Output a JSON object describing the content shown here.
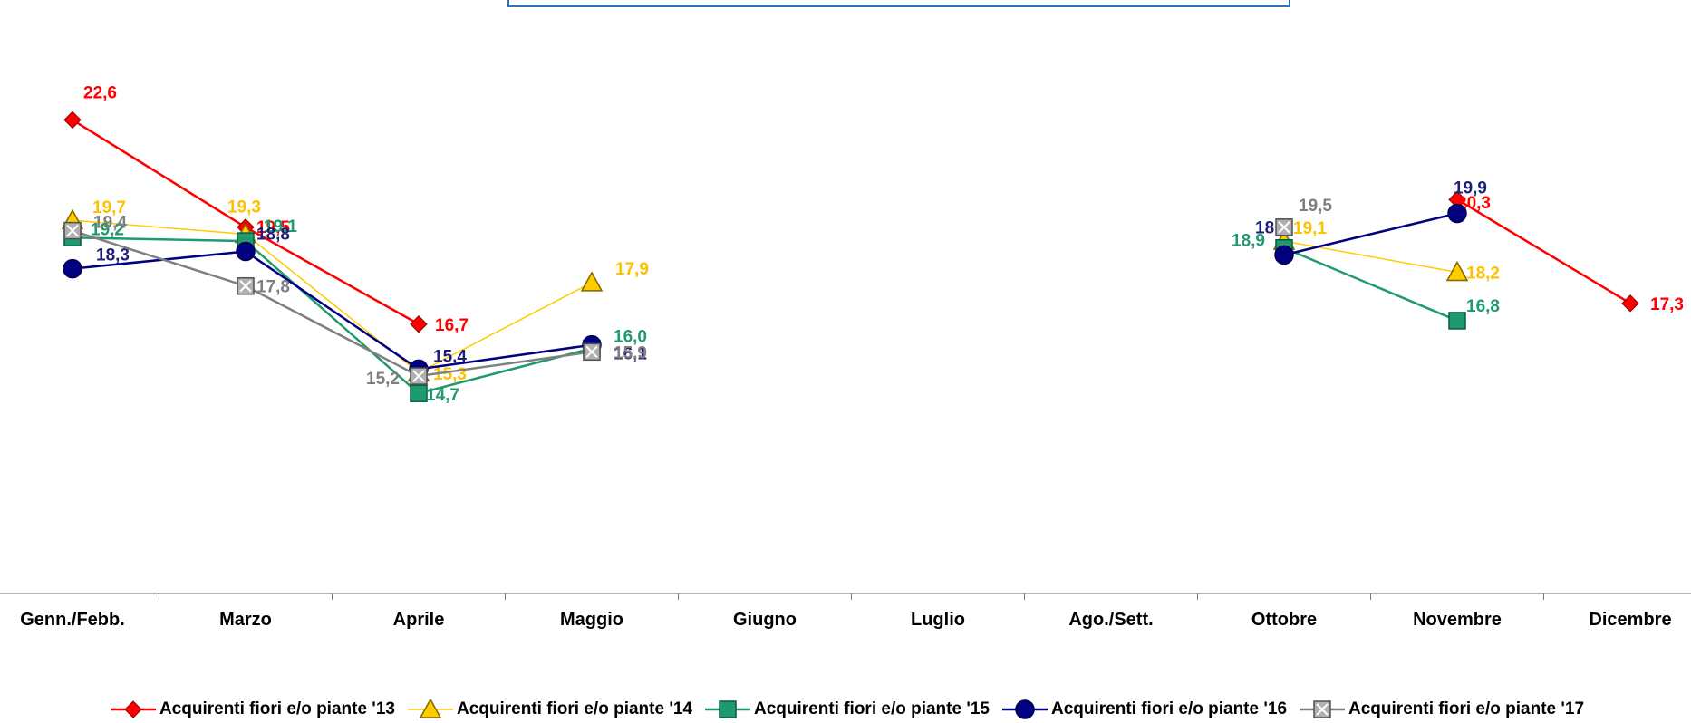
{
  "chart_data": {
    "type": "line",
    "categories": [
      "Genn./Febb.",
      "Marzo",
      "Aprile",
      "Maggio",
      "Giugno",
      "Luglio",
      "Ago./Sett.",
      "Ottobre",
      "Novembre",
      "Dicembre"
    ],
    "ylim": [
      10,
      25
    ],
    "grid": false,
    "legend_position": "bottom",
    "series": [
      {
        "name": "Acquirenti fiori e/o piante '13",
        "color": "#ff0000",
        "marker": "diamond",
        "values": [
          22.6,
          19.5,
          16.7,
          null,
          null,
          null,
          null,
          null,
          20.3,
          17.3
        ],
        "labels": [
          "22,6",
          "19,5",
          "16,7",
          "",
          "",
          "",
          "",
          "",
          "20,3",
          "17,3"
        ]
      },
      {
        "name": "Acquirenti fiori e/o piante '14",
        "color": "#ffcc00",
        "marker": "triangle",
        "values": [
          19.7,
          19.3,
          15.3,
          17.9,
          null,
          null,
          null,
          19.1,
          18.2,
          null
        ],
        "labels": [
          "19,7",
          "19,3",
          "15,3",
          "17,9",
          "",
          "",
          "",
          "19,1",
          "18,2",
          ""
        ]
      },
      {
        "name": "Acquirenti fiori e/o piante '15",
        "color": "#1e9a6e",
        "marker": "square",
        "values": [
          19.2,
          19.1,
          14.7,
          16.0,
          null,
          null,
          null,
          18.9,
          16.8,
          null
        ],
        "labels": [
          "19,2",
          "19,1",
          "14,7",
          "16,0",
          "",
          "",
          "",
          "18,9",
          "16,8",
          ""
        ]
      },
      {
        "name": "Acquirenti fiori e/o piante '16",
        "color": "#000080",
        "marker": "circle",
        "values": [
          18.3,
          18.8,
          15.4,
          16.1,
          null,
          null,
          null,
          18.7,
          19.9,
          null
        ],
        "labels": [
          "18,3",
          "18,8",
          "15,4",
          "16,1",
          "",
          "",
          "",
          "18,7",
          "19,9",
          ""
        ]
      },
      {
        "name": "Acquirenti fiori e/o piante '17",
        "color": "#808080",
        "marker": "square-x",
        "values": [
          19.4,
          17.8,
          15.2,
          15.9,
          null,
          null,
          null,
          19.5,
          null,
          null
        ],
        "labels": [
          "19,4",
          "17,8",
          "15,2",
          "15,9",
          "",
          "",
          "",
          "19,5",
          "",
          ""
        ]
      }
    ]
  }
}
